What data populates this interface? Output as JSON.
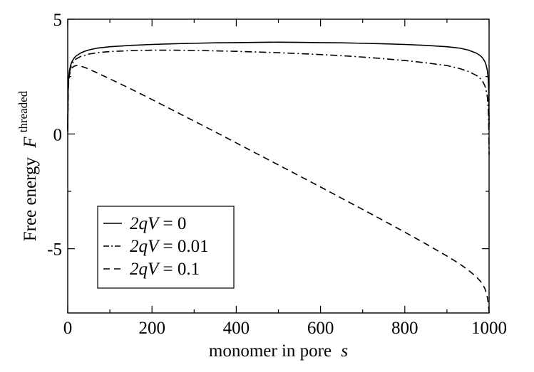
{
  "chart_data": {
    "type": "line",
    "xlabel": "monomer in pore",
    "xlabel_var": "s",
    "ylabel": "Free energy",
    "ylabel_var": "F",
    "ylabel_sup": "threaded",
    "xlim": [
      0,
      1000
    ],
    "ylim": [
      -7.8,
      5
    ],
    "xticks": [
      0,
      200,
      400,
      600,
      800,
      1000
    ],
    "yticks": [
      -5,
      0,
      5
    ],
    "minor_x_step": 100,
    "minor_y_step": 2.5,
    "grid": false,
    "legend_position": "bottom-left",
    "series": [
      {
        "name": "2qV = 0",
        "legend": {
          "var": "2qV",
          "eq": " = 0"
        },
        "dash": "solid",
        "color": "#000000",
        "x": [
          0,
          1,
          2,
          4,
          7,
          10,
          15,
          20,
          30,
          40,
          50,
          70,
          100,
          150,
          200,
          250,
          300,
          350,
          400,
          450,
          500,
          550,
          600,
          650,
          700,
          750,
          800,
          850,
          900,
          930,
          950,
          970,
          980,
          985,
          990,
          993,
          996,
          998,
          999,
          1000
        ],
        "y": [
          0.3,
          1.9,
          2.4,
          2.75,
          3.0,
          3.15,
          3.3,
          3.4,
          3.52,
          3.6,
          3.66,
          3.74,
          3.8,
          3.86,
          3.9,
          3.93,
          3.95,
          3.97,
          3.98,
          3.99,
          4.0,
          3.99,
          3.98,
          3.97,
          3.95,
          3.93,
          3.9,
          3.86,
          3.8,
          3.74,
          3.66,
          3.52,
          3.4,
          3.3,
          3.15,
          3.0,
          2.75,
          2.4,
          1.9,
          0.3
        ]
      },
      {
        "name": "2qV = 0.01",
        "legend": {
          "var": "2qV",
          "eq": " = 0.01"
        },
        "dash": "dashdot",
        "color": "#000000",
        "x": [
          0,
          1,
          2,
          4,
          7,
          10,
          15,
          20,
          30,
          50,
          70,
          100,
          150,
          200,
          250,
          300,
          350,
          400,
          450,
          500,
          550,
          600,
          650,
          700,
          750,
          800,
          850,
          900,
          930,
          950,
          970,
          980,
          985,
          990,
          993,
          996,
          998,
          999,
          1000
        ],
        "y": [
          0.2,
          1.8,
          2.3,
          2.65,
          2.9,
          3.05,
          3.18,
          3.27,
          3.37,
          3.48,
          3.54,
          3.59,
          3.63,
          3.65,
          3.65,
          3.64,
          3.62,
          3.6,
          3.57,
          3.54,
          3.5,
          3.46,
          3.41,
          3.35,
          3.28,
          3.2,
          3.1,
          2.98,
          2.85,
          2.73,
          2.55,
          2.4,
          2.28,
          2.1,
          1.9,
          1.6,
          1.1,
          0.5,
          -0.9
        ]
      },
      {
        "name": "2qV = 0.1",
        "legend": {
          "var": "2qV",
          "eq": " = 0.1"
        },
        "dash": "dashed",
        "color": "#000000",
        "x": [
          0,
          1,
          2,
          4,
          7,
          10,
          15,
          20,
          25,
          30,
          40,
          50,
          70,
          100,
          150,
          200,
          250,
          300,
          350,
          400,
          450,
          500,
          550,
          600,
          650,
          700,
          750,
          800,
          850,
          900,
          930,
          950,
          970,
          980,
          985,
          990,
          993,
          996,
          998,
          999,
          1000
        ],
        "y": [
          0.1,
          1.7,
          2.2,
          2.55,
          2.78,
          2.88,
          2.95,
          2.98,
          2.98,
          2.96,
          2.9,
          2.83,
          2.66,
          2.4,
          1.96,
          1.5,
          1.03,
          0.56,
          0.09,
          -0.39,
          -0.87,
          -1.35,
          -1.83,
          -2.31,
          -2.8,
          -3.29,
          -3.78,
          -4.28,
          -4.79,
          -5.32,
          -5.66,
          -5.92,
          -6.23,
          -6.43,
          -6.56,
          -6.74,
          -6.9,
          -7.12,
          -7.38,
          -7.56,
          -7.8
        ]
      }
    ]
  }
}
